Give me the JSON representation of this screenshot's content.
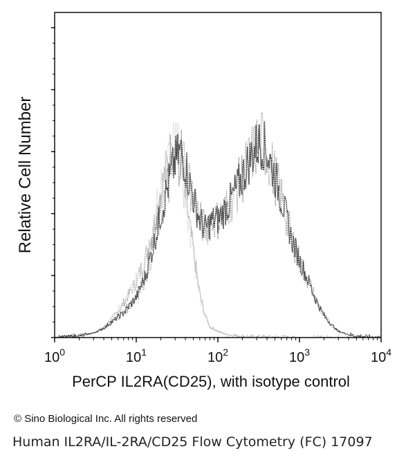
{
  "chart_data": {
    "type": "area",
    "title": "",
    "xlabel": "PerCP IL2RA(CD25), with isotype control",
    "ylabel": "Relative Cell Number",
    "x_scale": "log",
    "xlim": [
      1,
      10000
    ],
    "ylim": [
      0,
      100
    ],
    "x_ticks": [
      {
        "value": 1,
        "base": "10",
        "exp": "0"
      },
      {
        "value": 10,
        "base": "10",
        "exp": "1"
      },
      {
        "value": 100,
        "base": "10",
        "exp": "2"
      },
      {
        "value": 1000,
        "base": "10",
        "exp": "3"
      },
      {
        "value": 10000,
        "base": "10",
        "exp": "4"
      }
    ],
    "y_ticks": [
      0,
      20,
      40,
      60,
      80,
      100
    ],
    "grid": false,
    "legend": "none",
    "series": [
      {
        "role": "isotype control",
        "color": "#9a9a9a",
        "x": [
          1,
          2,
          3,
          4,
          5,
          7,
          10,
          13,
          16,
          20,
          25,
          30,
          35,
          40,
          50,
          60,
          70,
          80,
          100,
          130,
          180,
          250,
          400,
          700,
          1000
        ],
        "y": [
          0,
          0.5,
          1.5,
          3,
          6,
          11,
          18,
          26,
          35,
          47,
          58,
          62,
          57,
          45,
          28,
          14,
          7,
          3.5,
          2,
          1,
          0.5,
          0.3,
          0.2,
          0.1,
          0
        ]
      },
      {
        "role": "IL2RA(CD25)",
        "color": "#2a2a2a",
        "x": [
          1,
          2,
          3,
          4,
          5,
          7,
          10,
          13,
          16,
          20,
          25,
          30,
          35,
          40,
          45,
          50,
          60,
          70,
          80,
          90,
          100,
          120,
          150,
          200,
          250,
          300,
          350,
          400,
          500,
          600,
          700,
          800,
          1000,
          1300,
          1600,
          2000,
          2500,
          3000,
          4000,
          5000,
          7000,
          10000
        ],
        "y": [
          0,
          0.5,
          1.5,
          3,
          5,
          8,
          13,
          20,
          29,
          40,
          50,
          57,
          60,
          56,
          50,
          45,
          38,
          35,
          37,
          38,
          38,
          41,
          45,
          52,
          58,
          62,
          63,
          60,
          52,
          45,
          38,
          32,
          25,
          18,
          12,
          7,
          4,
          2,
          1,
          0.5,
          0.2,
          0
        ]
      }
    ]
  },
  "footer": {
    "copyright": "© Sino Biological Inc. All rights reserved",
    "caption": "Human IL2RA/IL-2RA/CD25 Flow Cytometry (FC) 17097"
  }
}
